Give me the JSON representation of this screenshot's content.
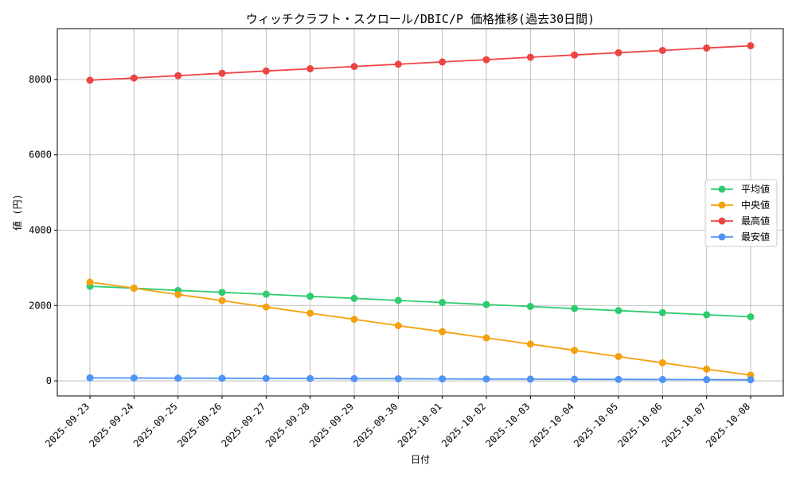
{
  "chart_data": {
    "type": "line",
    "title": "ウィッチクラフト・スクロール/DBIC/P 価格推移(過去30日間)",
    "xlabel": "日付",
    "ylabel": "値 (円)",
    "categories": [
      "2025-09-23",
      "2025-09-24",
      "2025-09-25",
      "2025-09-26",
      "2025-09-27",
      "2025-09-28",
      "2025-09-29",
      "2025-09-30",
      "2025-10-01",
      "2025-10-02",
      "2025-10-03",
      "2025-10-04",
      "2025-10-05",
      "2025-10-06",
      "2025-10-07",
      "2025-10-08"
    ],
    "ylim": [
      -400,
      9350
    ],
    "yticks": [
      0,
      2000,
      4000,
      6000,
      8000
    ],
    "grid": true,
    "legend_position": "center-right",
    "series": [
      {
        "name": "平均値",
        "color": "#2ecc71",
        "values": [
          2510,
          2460,
          2400,
          2350,
          2300,
          2245,
          2190,
          2135,
          2080,
          2025,
          1975,
          1920,
          1865,
          1810,
          1755,
          1700
        ]
      },
      {
        "name": "中央値",
        "color": "#f5a00f",
        "values": [
          2620,
          2460,
          2290,
          2130,
          1960,
          1795,
          1635,
          1465,
          1305,
          1140,
          975,
          810,
          645,
          480,
          310,
          150
        ]
      },
      {
        "name": "最高値",
        "color": "#ef4444",
        "values": [
          7980,
          8040,
          8100,
          8165,
          8225,
          8285,
          8345,
          8405,
          8465,
          8525,
          8590,
          8650,
          8710,
          8770,
          8835,
          8895
        ]
      },
      {
        "name": "最安値",
        "color": "#4f93f7",
        "values": [
          80,
          75,
          72,
          68,
          65,
          62,
          58,
          55,
          52,
          48,
          45,
          42,
          38,
          35,
          32,
          28
        ]
      }
    ]
  }
}
